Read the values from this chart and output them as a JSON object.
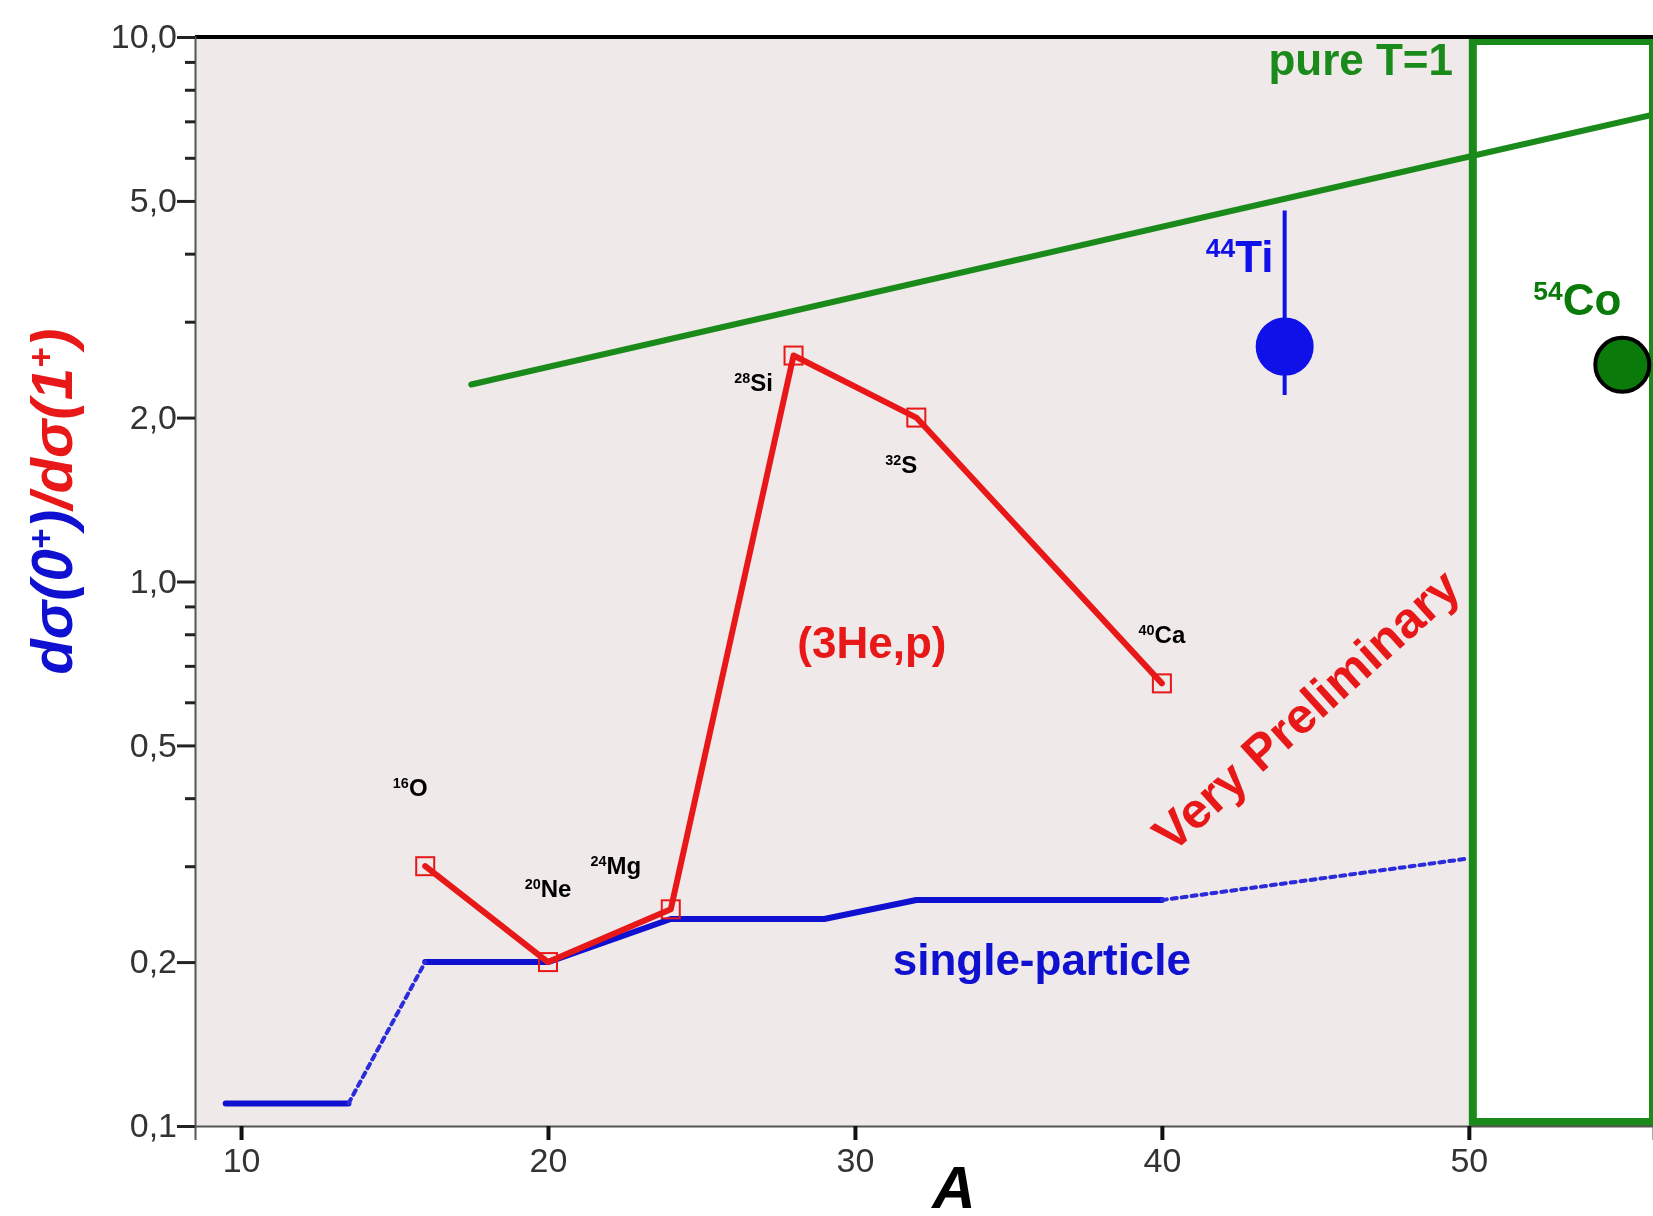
{
  "chart_data": {
    "type": "line",
    "xlabel": "A",
    "ylabel": "dσ(0$^{+}$)/dσ(1$^{+}$)",
    "log": "y",
    "grid": false,
    "xlim": [
      8.5,
      56
    ],
    "xticks": [
      10,
      20,
      30,
      40,
      50
    ],
    "ylim": [
      0.1,
      10
    ],
    "yticks": [
      {
        "value": 0.1,
        "label": "0,1"
      },
      {
        "value": 0.2,
        "label": "0,2"
      },
      {
        "value": 0.3,
        "label": null
      },
      {
        "value": 0.4,
        "label": null
      },
      {
        "value": 0.5,
        "label": "0,5"
      },
      {
        "value": 0.6,
        "label": null
      },
      {
        "value": 0.7,
        "label": null
      },
      {
        "value": 0.8,
        "label": null
      },
      {
        "value": 0.9,
        "label": null
      },
      {
        "value": 1,
        "label": "1,0"
      },
      {
        "value": 2,
        "label": "2,0"
      },
      {
        "value": 3,
        "label": null
      },
      {
        "value": 4,
        "label": null
      },
      {
        "value": 5,
        "label": "5,0"
      },
      {
        "value": 6,
        "label": null
      },
      {
        "value": 7,
        "label": null
      },
      {
        "value": 8,
        "label": null
      },
      {
        "value": 9,
        "label": null
      },
      {
        "value": 10,
        "label": "10,0"
      }
    ],
    "bands": [
      {
        "axis": "x",
        "from": 50,
        "to": 56,
        "color": "#1a8a1a"
      }
    ],
    "series": [
      {
        "name": "pure T=1",
        "color": "#1a8a1a",
        "x": [
          17.5,
          56
        ],
        "values": [
          2.3,
          7.2
        ],
        "line_style": "solid",
        "marker": "none"
      },
      {
        "name": "single-particle",
        "color": "#1010d0",
        "x": [
          9.5,
          13.5,
          14,
          16,
          20,
          24,
          29,
          32,
          40
        ],
        "values": [
          0.11,
          0.11,
          null,
          0.2,
          0.2,
          0.24,
          0.24,
          0.26,
          0.26
        ],
        "line_style": "solid",
        "marker": "none"
      },
      {
        "color": "#2b2bdc",
        "x": [
          13.5,
          16,
          28,
          40,
          50
        ],
        "values": [
          0.11,
          0.2,
          null,
          0.26,
          0.31
        ],
        "line_style": "dotted",
        "marker": "none"
      },
      {
        "name": "(3He,p)",
        "color": "#e81818",
        "x": [
          16,
          20,
          24,
          28,
          32,
          40
        ],
        "values": [
          0.3,
          0.2,
          0.25,
          2.6,
          2.0,
          0.65
        ],
        "line_style": "solid",
        "marker": "square"
      },
      {
        "name": "$^{44}$Ti",
        "type": "scatter",
        "color": "#1010e8",
        "x": [
          44
        ],
        "values": [
          2.7
        ],
        "errors": [
          [
            2.2,
            4.8
          ]
        ],
        "marker": "circle"
      },
      {
        "name": "$^{54}$Co",
        "type": "scatter",
        "color": "#0a7a0a",
        "x": [
          55
        ],
        "values": [
          2.5
        ],
        "marker": "circle"
      }
    ],
    "annotations": [
      "$^{16}$O",
      "$^{20}$Ne",
      "$^{24}$Mg",
      "$^{28}$Si",
      "$^{32}$S",
      "$^{40}$Ca",
      "Very Preliminary"
    ]
  }
}
